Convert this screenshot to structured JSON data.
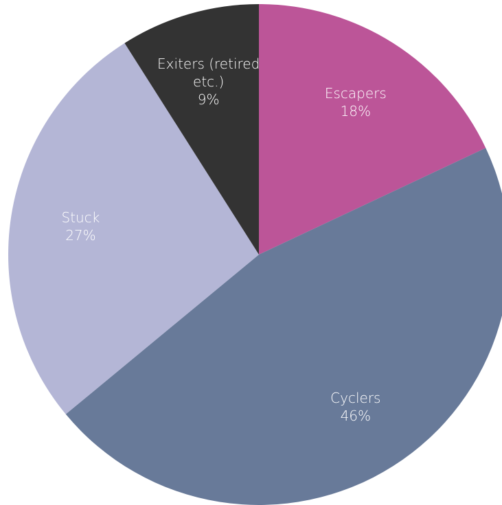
{
  "chart_data": {
    "type": "pie",
    "categories": [
      "Escapers",
      "Cyclers",
      "Stuck",
      "Exiters (retired etc.)"
    ],
    "values": [
      18,
      46,
      27,
      9
    ],
    "value_labels": [
      "18%",
      "46%",
      "27%",
      "9%"
    ],
    "colors": [
      "#bc5598",
      "#687a99",
      "#b4b6d6",
      "#333333"
    ]
  }
}
